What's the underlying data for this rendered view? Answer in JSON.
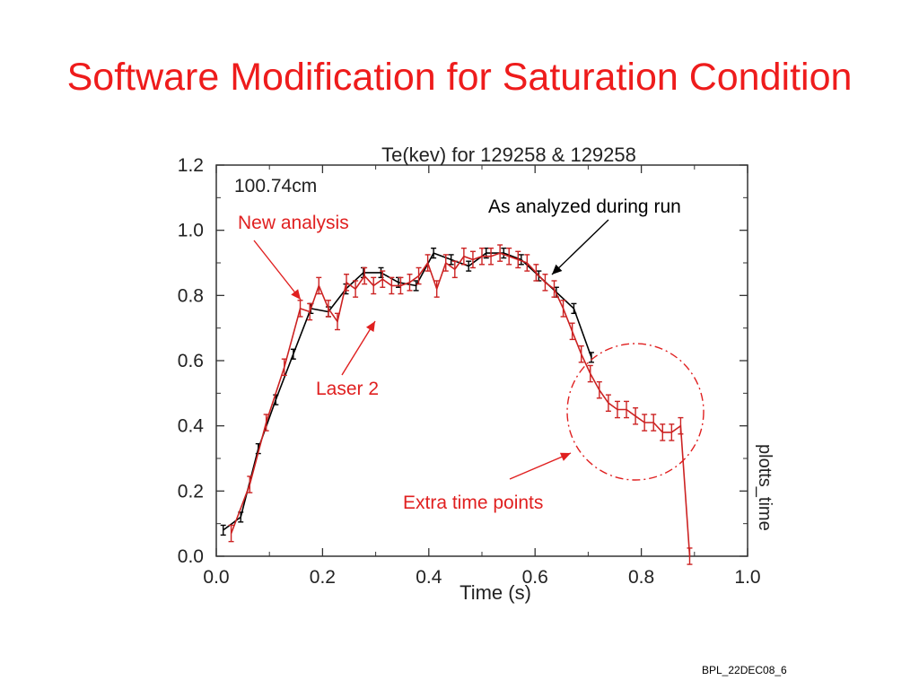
{
  "slide": {
    "title": "Software Modification for Saturation Condition",
    "footer": "BPL_22DEC08_6"
  },
  "colors": {
    "title": "#ee1c1c",
    "new_analysis": "#cc2222",
    "run_analysis": "#000000",
    "annotation": "#e02020"
  },
  "chart_data": {
    "type": "line",
    "title": "Te(kev) for 129258 & 129258",
    "xlabel": "Time (s)",
    "ylabel": "",
    "right_label": "plotts_time",
    "inset_label": "100.74cm",
    "xlim": [
      0.0,
      1.0
    ],
    "ylim": [
      0.0,
      1.2
    ],
    "xticks": [
      "0.0",
      "0.2",
      "0.4",
      "0.6",
      "0.8",
      "1.0"
    ],
    "yticks": [
      "0.0",
      "0.2",
      "0.4",
      "0.6",
      "0.8",
      "1.0",
      "1.2"
    ],
    "grid": false,
    "series": [
      {
        "name": "As analyzed during run",
        "color": "#000000",
        "x": [
          0.013,
          0.046,
          0.079,
          0.112,
          0.145,
          0.178,
          0.211,
          0.244,
          0.277,
          0.31,
          0.343,
          0.376,
          0.409,
          0.442,
          0.475,
          0.508,
          0.541,
          0.574,
          0.607,
          0.64,
          0.673,
          0.706
        ],
        "y": [
          0.08,
          0.12,
          0.33,
          0.48,
          0.62,
          0.76,
          0.75,
          0.82,
          0.87,
          0.87,
          0.84,
          0.83,
          0.93,
          0.91,
          0.89,
          0.93,
          0.93,
          0.91,
          0.86,
          0.81,
          0.76,
          0.61
        ],
        "err": 0.015
      },
      {
        "name": "New analysis",
        "color": "#cc2222",
        "x": [
          0.028,
          0.063,
          0.094,
          0.128,
          0.158,
          0.176,
          0.193,
          0.211,
          0.228,
          0.245,
          0.262,
          0.279,
          0.296,
          0.313,
          0.33,
          0.347,
          0.364,
          0.381,
          0.398,
          0.415,
          0.432,
          0.449,
          0.466,
          0.483,
          0.5,
          0.517,
          0.534,
          0.551,
          0.568,
          0.585,
          0.602,
          0.619,
          0.636,
          0.653,
          0.67,
          0.687,
          0.704,
          0.721,
          0.738,
          0.755,
          0.772,
          0.789,
          0.806,
          0.823,
          0.84,
          0.857,
          0.874,
          0.891
        ],
        "y": [
          0.07,
          0.22,
          0.41,
          0.58,
          0.76,
          0.75,
          0.83,
          0.76,
          0.72,
          0.84,
          0.82,
          0.86,
          0.83,
          0.85,
          0.83,
          0.83,
          0.84,
          0.86,
          0.9,
          0.82,
          0.9,
          0.88,
          0.92,
          0.91,
          0.92,
          0.92,
          0.93,
          0.92,
          0.91,
          0.9,
          0.87,
          0.84,
          0.82,
          0.76,
          0.69,
          0.62,
          0.56,
          0.51,
          0.47,
          0.45,
          0.45,
          0.43,
          0.41,
          0.41,
          0.38,
          0.38,
          0.4,
          0.0
        ],
        "err": 0.025
      }
    ],
    "annotations": [
      {
        "text": "As analyzed during run",
        "color": "#000000"
      },
      {
        "text": "New analysis",
        "color": "#e02020"
      },
      {
        "text": "Laser 2",
        "color": "#e02020"
      },
      {
        "text": "Extra time points",
        "color": "#e02020"
      }
    ]
  }
}
